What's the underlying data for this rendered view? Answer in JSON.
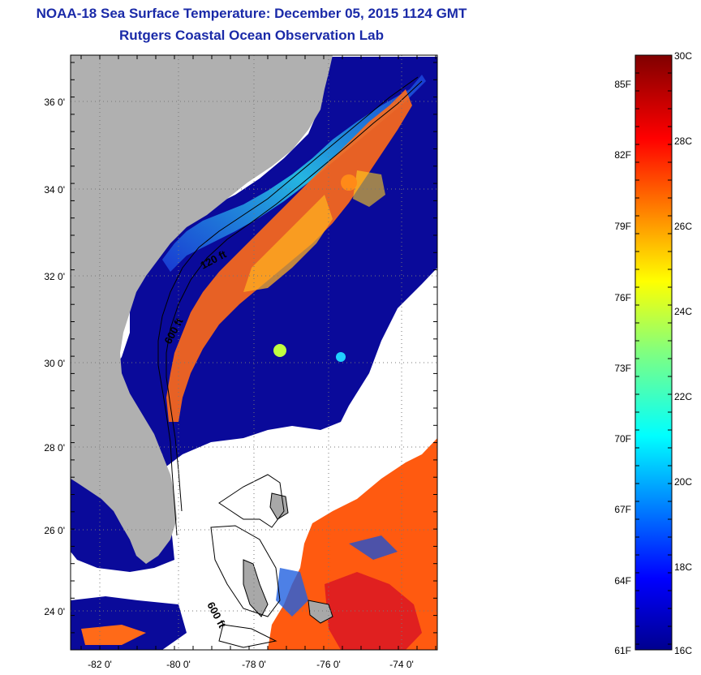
{
  "title": "NOAA-18 Sea Surface Temperature:  December 05, 2015 1124 GMT",
  "subtitle": "Rutgers Coastal Ocean Observation Lab",
  "map": {
    "lat_ticks": [
      "36 0'",
      "34 0'",
      "32 0'",
      "30 0'",
      "28 0'",
      "26 0'",
      "24 0'"
    ],
    "lon_ticks": [
      "-82 0'",
      "-80 0'",
      "-78 0'",
      "-76 0'",
      "-74 0'"
    ],
    "contour_labels": [
      "120 ft",
      "600 ft",
      "600 ft"
    ],
    "colors": {
      "land": "#b0b0b0",
      "no_data": "#ffffff",
      "cold": "#0a0a9a",
      "warm": "#ff5a10",
      "hot": "#e02020"
    }
  },
  "colorbar": {
    "fahrenheit_labels": [
      "85F",
      "82F",
      "79F",
      "76F",
      "73F",
      "70F",
      "67F",
      "64F",
      "61F"
    ],
    "celsius_labels": [
      "30C",
      "28C",
      "26C",
      "24C",
      "22C",
      "20C",
      "18C",
      "16C"
    ],
    "min_c": 16,
    "max_c": 30
  }
}
